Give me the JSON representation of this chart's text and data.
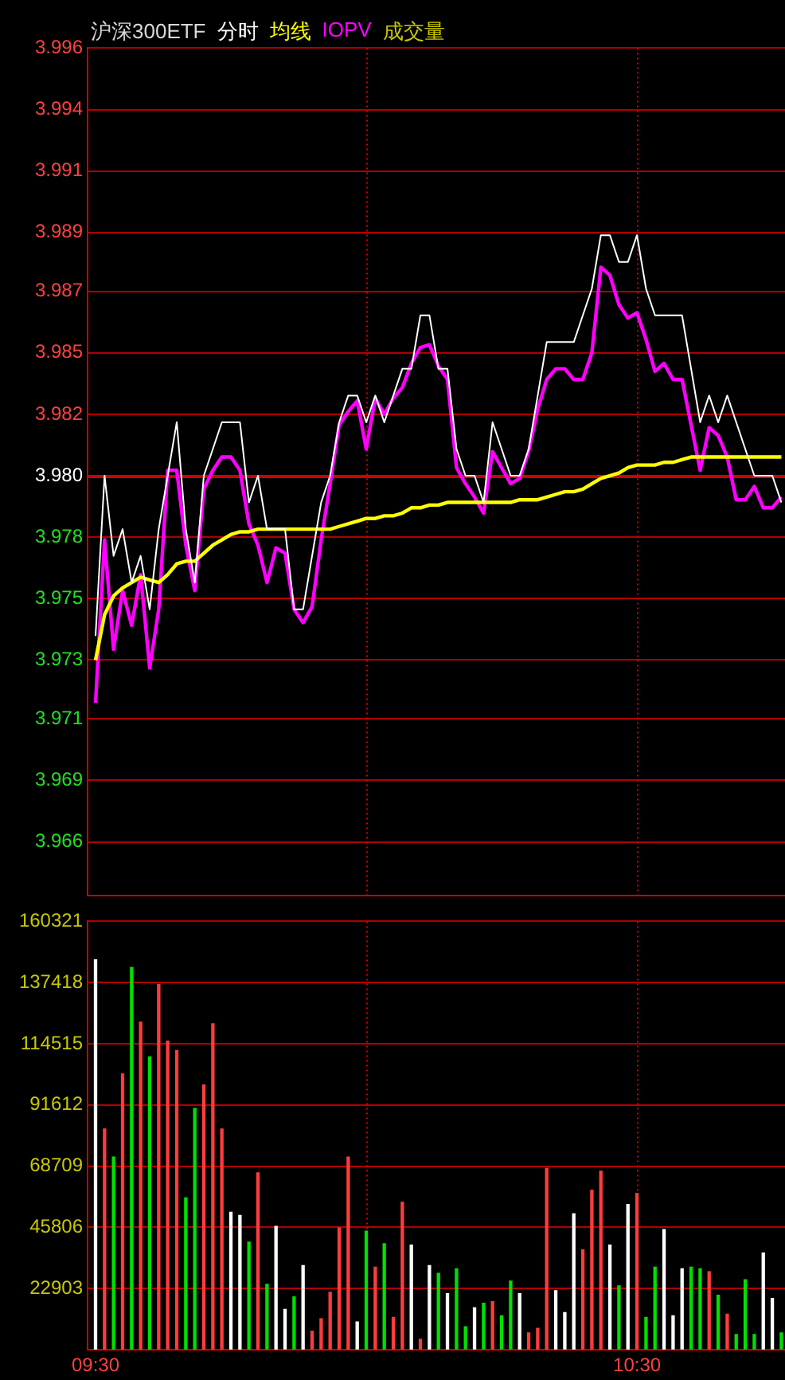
{
  "chart_data": [
    {
      "type": "line",
      "title": "沪深300ETF",
      "annotations": [
        "成交量"
      ],
      "grid": "y",
      "tick_labels": "y",
      "x": [
        9.5,
        9.5167,
        9.5333,
        9.55,
        9.5667,
        9.5833,
        9.6,
        9.6167,
        9.6333,
        9.65,
        9.6667,
        9.6833,
        9.7,
        9.7167,
        9.7333,
        9.75,
        9.7667,
        9.7833,
        9.8,
        9.8167,
        9.8333,
        9.85,
        9.8667,
        9.8833,
        9.9,
        9.9167,
        9.9333,
        9.95,
        9.9667,
        9.9833,
        10,
        10.0167,
        10.0333,
        10.05,
        10.0667,
        10.0833,
        10.1,
        10.1167,
        10.1333,
        10.15,
        10.1667,
        10.1833,
        10.2,
        10.2167,
        10.2333,
        10.25,
        10.2667,
        10.2833,
        10.3,
        10.3167,
        10.3333,
        10.35,
        10.3667,
        10.3833,
        10.4,
        10.4167,
        10.4333,
        10.45,
        10.4667,
        10.4833,
        10.5,
        10.5167,
        10.5333,
        10.55,
        10.5667,
        10.5833,
        10.6,
        10.6167,
        10.6333,
        10.65,
        10.6667,
        10.6833,
        10.7,
        10.7167,
        10.7333,
        10.75,
        10.7667
      ],
      "xlim": [
        9.4853,
        10.7734
      ],
      "ylim": [
        3.9643,
        3.996
      ],
      "yticks": [
        {
          "value": 3.996,
          "label": "3.996"
        },
        {
          "value": 3.9937,
          "label": "3.994"
        },
        {
          "value": 3.9914,
          "label": "3.991"
        },
        {
          "value": 3.9891,
          "label": "3.989"
        },
        {
          "value": 3.9869,
          "label": "3.987"
        },
        {
          "value": 3.9846,
          "label": "3.985"
        },
        {
          "value": 3.9823,
          "label": "3.982"
        },
        {
          "value": 3.98,
          "label": "3.980"
        },
        {
          "value": 3.9777,
          "label": "3.978"
        },
        {
          "value": 3.9754,
          "label": "3.975"
        },
        {
          "value": 3.9731,
          "label": "3.973"
        },
        {
          "value": 3.9709,
          "label": "3.971"
        },
        {
          "value": 3.9686,
          "label": "3.969"
        },
        {
          "value": 3.9663,
          "label": "3.966"
        }
      ],
      "ref_lines": [
        {
          "axis": "y",
          "value": 3.98,
          "color": "#d00000",
          "line_style": "solid"
        },
        {
          "axis": "x",
          "value": 10,
          "color": "#d00000",
          "line_style": "dotted"
        },
        {
          "axis": "x",
          "value": 10.5,
          "color": "#d00000",
          "line_style": "dotted"
        }
      ],
      "series": [
        {
          "name": "分时",
          "color": "#ffffff",
          "values": [
            3.974,
            3.98,
            3.977,
            3.978,
            3.976,
            3.977,
            3.975,
            3.978,
            3.98,
            3.982,
            3.978,
            3.976,
            3.98,
            3.981,
            3.982,
            3.982,
            3.982,
            3.979,
            3.98,
            3.978,
            3.978,
            3.978,
            3.975,
            3.975,
            3.977,
            3.979,
            3.98,
            3.982,
            3.983,
            3.983,
            3.982,
            3.983,
            3.982,
            3.983,
            3.984,
            3.984,
            3.986,
            3.986,
            3.984,
            3.984,
            3.981,
            3.98,
            3.98,
            3.979,
            3.982,
            3.981,
            3.98,
            3.98,
            3.981,
            3.983,
            3.985,
            3.985,
            3.985,
            3.985,
            3.986,
            3.987,
            3.989,
            3.989,
            3.988,
            3.988,
            3.989,
            3.987,
            3.986,
            3.986,
            3.986,
            3.986,
            3.984,
            3.982,
            3.983,
            3.982,
            3.983,
            3.982,
            3.981,
            3.98,
            3.98,
            3.98,
            3.979
          ]
        },
        {
          "name": "均线",
          "color": "#ffff00",
          "values": [
            3.9731,
            3.9748,
            3.9755,
            3.9758,
            3.976,
            3.9762,
            3.9761,
            3.976,
            3.9763,
            3.9767,
            3.9768,
            3.9768,
            3.9771,
            3.9774,
            3.9776,
            3.9778,
            3.9779,
            3.9779,
            3.978,
            3.978,
            3.978,
            3.978,
            3.978,
            3.978,
            3.978,
            3.978,
            3.978,
            3.9781,
            3.9782,
            3.9783,
            3.9784,
            3.9784,
            3.9785,
            3.9785,
            3.9786,
            3.9788,
            3.9788,
            3.9789,
            3.9789,
            3.979,
            3.979,
            3.979,
            3.979,
            3.979,
            3.979,
            3.979,
            3.979,
            3.9791,
            3.9791,
            3.9791,
            3.9792,
            3.9793,
            3.9794,
            3.9794,
            3.9795,
            3.9797,
            3.9799,
            3.98,
            3.9801,
            3.9803,
            3.9804,
            3.9804,
            3.9804,
            3.9805,
            3.9805,
            3.9806,
            3.9807,
            3.9807,
            3.9807,
            3.9807,
            3.9807,
            3.9807,
            3.9807,
            3.9807,
            3.9807,
            3.9807,
            3.9807
          ]
        },
        {
          "name": "IOPV",
          "color": "#ff00ff",
          "values": [
            3.9715,
            3.9776,
            3.9735,
            3.9757,
            3.9744,
            3.9763,
            3.9728,
            3.975,
            3.9802,
            3.9802,
            3.9774,
            3.9757,
            3.9795,
            3.9802,
            3.9807,
            3.9807,
            3.9802,
            3.9782,
            3.9774,
            3.976,
            3.9773,
            3.9771,
            3.975,
            3.9745,
            3.9751,
            3.9776,
            3.9797,
            3.9819,
            3.9824,
            3.9828,
            3.981,
            3.9829,
            3.9823,
            3.9829,
            3.9833,
            3.9842,
            3.9848,
            3.9849,
            3.9841,
            3.9836,
            3.9803,
            3.9797,
            3.9792,
            3.9786,
            3.9809,
            3.9803,
            3.9797,
            3.9799,
            3.9809,
            3.9825,
            3.9836,
            3.984,
            3.984,
            3.9836,
            3.9836,
            3.9846,
            3.9878,
            3.9875,
            3.9864,
            3.9859,
            3.9861,
            3.9851,
            3.9839,
            3.9842,
            3.9836,
            3.9836,
            3.9819,
            3.9802,
            3.9818,
            3.9815,
            3.9807,
            3.9791,
            3.9791,
            3.9796,
            3.9788,
            3.9788,
            3.9792
          ]
        }
      ]
    },
    {
      "type": "bar",
      "grid": "y",
      "x": [
        9.5,
        9.5167,
        9.5333,
        9.55,
        9.5667,
        9.5833,
        9.6,
        9.6167,
        9.6333,
        9.65,
        9.6667,
        9.6833,
        9.7,
        9.7167,
        9.7333,
        9.75,
        9.7667,
        9.7833,
        9.8,
        9.8167,
        9.8333,
        9.85,
        9.8667,
        9.8833,
        9.9,
        9.9167,
        9.9333,
        9.95,
        9.9667,
        9.9833,
        10,
        10.0167,
        10.0333,
        10.05,
        10.0667,
        10.0833,
        10.1,
        10.1167,
        10.1333,
        10.15,
        10.1667,
        10.1833,
        10.2,
        10.2167,
        10.2333,
        10.25,
        10.2667,
        10.2833,
        10.3,
        10.3167,
        10.3333,
        10.35,
        10.3667,
        10.3833,
        10.4,
        10.4167,
        10.4333,
        10.45,
        10.4667,
        10.4833,
        10.5,
        10.5167,
        10.5333,
        10.55,
        10.5667,
        10.5833,
        10.6,
        10.6167,
        10.6333,
        10.65,
        10.6667,
        10.6833,
        10.7,
        10.7167,
        10.7333,
        10.75,
        10.7667
      ],
      "xlim": [
        9.4853,
        10.7734
      ],
      "xticks": [
        {
          "value": 9.5,
          "label": "09:30"
        },
        {
          "value": 10.5,
          "label": "10:30"
        }
      ],
      "ylim": [
        0,
        160321
      ],
      "yticks": [
        {
          "value": 0,
          "label": null
        },
        22903,
        45806,
        68709,
        91612,
        114515,
        137418,
        160321
      ],
      "ref_lines": [
        {
          "axis": "x",
          "value": 10,
          "color": "#d00000",
          "line_style": "dotted"
        },
        {
          "axis": "x",
          "value": 10.5,
          "color": "#d00000",
          "line_style": "dotted"
        }
      ],
      "values": [
        145900,
        82600,
        72100,
        103200,
        143100,
        122600,
        109600,
        136700,
        115500,
        112000,
        56800,
        90300,
        99100,
        122000,
        82600,
        51500,
        50300,
        40300,
        66200,
        24500,
        46200,
        15100,
        19800,
        31500,
        6900,
        11600,
        21500,
        45600,
        72100,
        10400,
        44400,
        30900,
        39700,
        12100,
        55200,
        39200,
        3900,
        31500,
        28600,
        21000,
        30300,
        8600,
        15700,
        17400,
        18000,
        12700,
        25700,
        21000,
        6300,
        8000,
        67900,
        22100,
        13900,
        50900,
        37400,
        59700,
        66800,
        39200,
        23900,
        54400,
        58500,
        12100,
        30900,
        45000,
        12700,
        30300,
        30900,
        30300,
        29200,
        20400,
        13300,
        5700,
        26200,
        5700,
        36200,
        19200,
        6300
      ],
      "colors": [
        "#ffffff",
        "#ff3c3c",
        "#00e000",
        "#ff3c3c",
        "#00e000",
        "#ff3c3c",
        "#00e000",
        "#ff3c3c",
        "#ff3c3c",
        "#ff3c3c",
        "#00e000",
        "#00e000",
        "#ff3c3c",
        "#ff3c3c",
        "#ff3c3c",
        "#ffffff",
        "#ffffff",
        "#00e000",
        "#ff3c3c",
        "#00e000",
        "#ffffff",
        "#ffffff",
        "#00e000",
        "#ffffff",
        "#ff3c3c",
        "#ff3c3c",
        "#ff3c3c",
        "#ff3c3c",
        "#ff3c3c",
        "#ffffff",
        "#00e000",
        "#ff3c3c",
        "#00e000",
        "#ff3c3c",
        "#ff3c3c",
        "#ffffff",
        "#ff3c3c",
        "#ffffff",
        "#00e000",
        "#ffffff",
        "#00e000",
        "#00e000",
        "#ffffff",
        "#00e000",
        "#ff3c3c",
        "#00e000",
        "#00e000",
        "#ffffff",
        "#ff3c3c",
        "#ff3c3c",
        "#ff3c3c",
        "#ffffff",
        "#ffffff",
        "#ffffff",
        "#ff3c3c",
        "#ff3c3c",
        "#ff3c3c",
        "#ffffff",
        "#00e000",
        "#ffffff",
        "#ff3c3c",
        "#00e000",
        "#00e000",
        "#ffffff",
        "#ffffff",
        "#ffffff",
        "#00e000",
        "#00e000",
        "#ff3c3c",
        "#00e000",
        "#ff3c3c",
        "#00e000",
        "#00e000",
        "#00e000",
        "#ffffff",
        "#ffffff",
        "#00e000"
      ]
    }
  ]
}
